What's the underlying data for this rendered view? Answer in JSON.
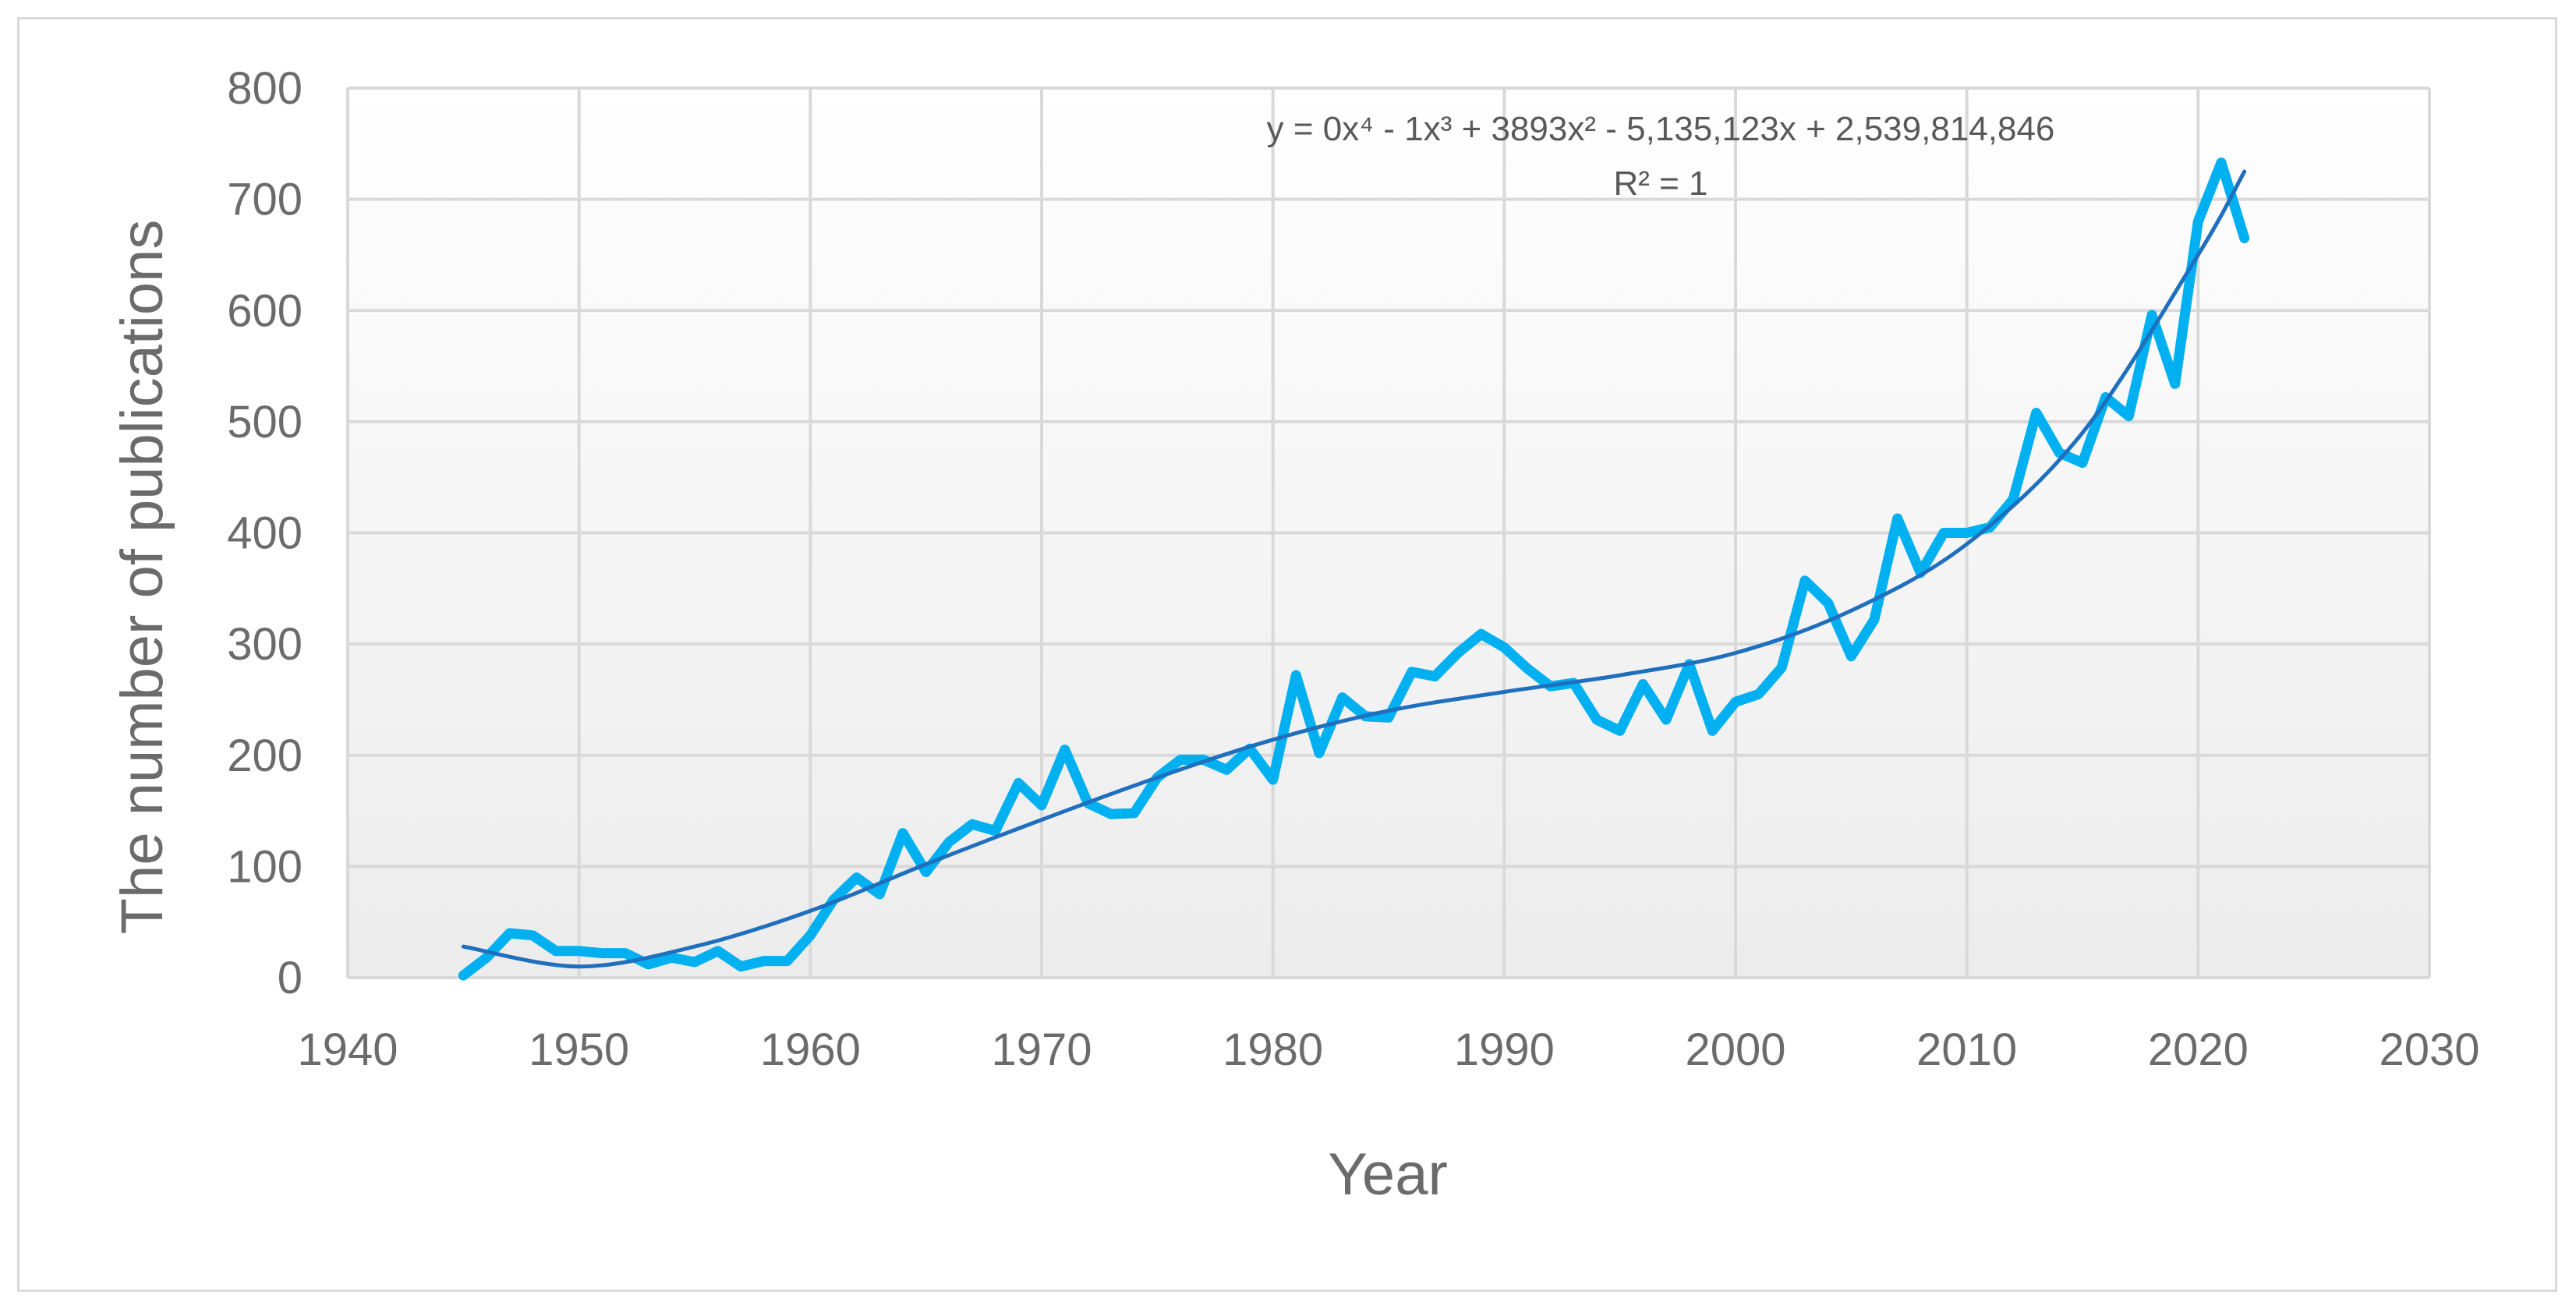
{
  "chart_data": {
    "type": "line",
    "xlabel": "Year",
    "ylabel": "The number of publications",
    "xlim": [
      1940,
      2030
    ],
    "ylim": [
      0,
      800
    ],
    "x_ticks": [
      1940,
      1950,
      1960,
      1970,
      1980,
      1990,
      2000,
      2010,
      2020,
      2030
    ],
    "y_ticks": [
      0,
      100,
      200,
      300,
      400,
      500,
      600,
      700,
      800
    ],
    "grid": true,
    "legend": "none",
    "trendline_equation": "y = 0x⁴ - 1x³ + 3893x² - 5,135,123x + 2,539,814,846",
    "trendline_r2": "R² = 1",
    "series": [
      {
        "color": "#00b0f0",
        "x": [
          1945,
          1946,
          1947,
          1948,
          1949,
          1950,
          1951,
          1952,
          1953,
          1954,
          1955,
          1956,
          1957,
          1958,
          1959,
          1960,
          1961,
          1962,
          1963,
          1964,
          1965,
          1966,
          1967,
          1968,
          1969,
          1970,
          1971,
          1972,
          1973,
          1974,
          1975,
          1976,
          1977,
          1978,
          1979,
          1980,
          1981,
          1982,
          1983,
          1984,
          1985,
          1986,
          1987,
          1988,
          1989,
          1990,
          1991,
          1992,
          1993,
          1994,
          1995,
          1996,
          1997,
          1998,
          1999,
          2000,
          2001,
          2002,
          2003,
          2004,
          2005,
          2006,
          2007,
          2008,
          2009,
          2010,
          2011,
          2012,
          2013,
          2014,
          2015,
          2016,
          2017,
          2018,
          2019,
          2020,
          2021,
          2022
        ],
        "values": [
          2,
          18,
          40,
          38,
          24,
          24,
          22,
          22,
          12,
          18,
          14,
          24,
          10,
          15,
          15,
          38,
          70,
          90,
          75,
          130,
          95,
          122,
          138,
          132,
          175,
          155,
          205,
          157,
          147,
          148,
          180,
          196,
          196,
          187,
          206,
          178,
          272,
          202,
          252,
          235,
          234,
          275,
          271,
          292,
          309,
          297,
          278,
          262,
          265,
          232,
          222,
          264,
          232,
          282,
          222,
          248,
          255,
          279,
          357,
          337,
          289,
          322,
          413,
          364,
          400,
          400,
          405,
          430,
          508,
          472,
          463,
          522,
          505,
          596,
          534,
          680,
          733,
          665
        ]
      }
    ],
    "trendline": {
      "color": "#1f6fbf",
      "x": [
        1945,
        1950,
        1955,
        1960,
        1965,
        1970,
        1975,
        1980,
        1985,
        1990,
        1995,
        2000,
        2005,
        2010,
        2015,
        2020,
        2022
      ],
      "values": [
        28,
        10,
        28,
        60,
        102,
        142,
        180,
        214,
        240,
        257,
        272,
        292,
        330,
        390,
        490,
        650,
        725
      ]
    }
  }
}
